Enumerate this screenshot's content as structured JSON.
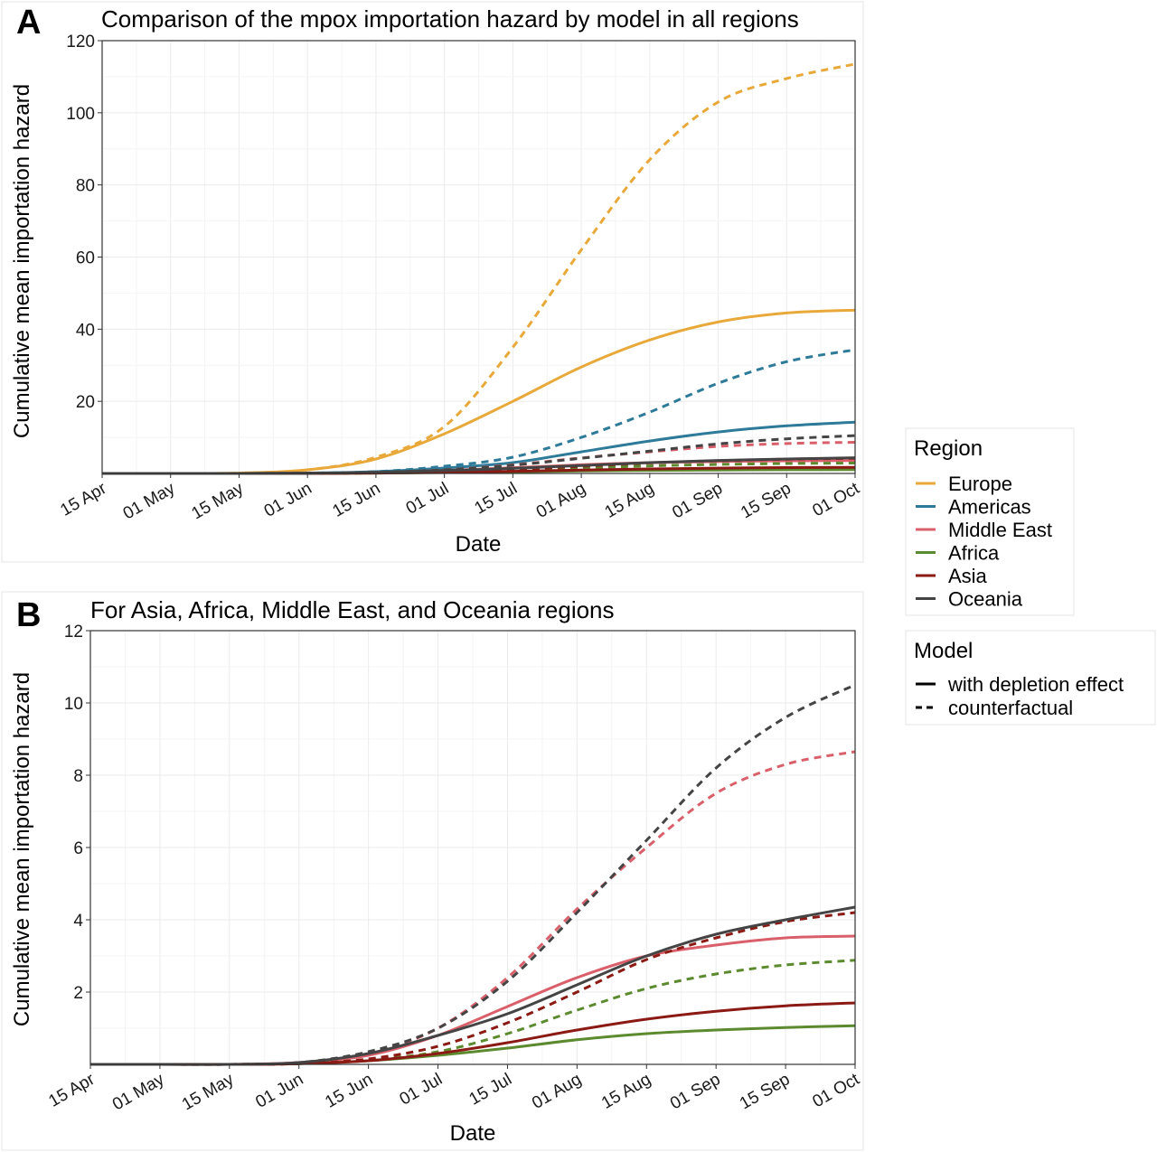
{
  "panels": [
    {
      "letter": "A",
      "title": "Comparison of the mpox importation hazard by model in all regions"
    },
    {
      "letter": "B",
      "title": "For Asia, Africa, Middle East, and Oceania regions"
    }
  ],
  "legend": {
    "region_title": "Region",
    "region_items": [
      {
        "label": "Europe",
        "color": "#E8A93A"
      },
      {
        "label": "Americas",
        "color": "#2E7A99"
      },
      {
        "label": "Middle East",
        "color": "#D9606A"
      },
      {
        "label": "Africa",
        "color": "#5C8A2E"
      },
      {
        "label": "Asia",
        "color": "#8B1A14"
      },
      {
        "label": "Oceania",
        "color": "#444444"
      }
    ],
    "model_title": "Model",
    "model_items": [
      {
        "label": "with depletion effect",
        "style": "solid"
      },
      {
        "label": "counterfactual",
        "style": "dashed"
      }
    ]
  },
  "chart_data": [
    {
      "type": "line",
      "title": "Comparison of the mpox importation hazard by model in all regions",
      "xlabel": "Date",
      "ylabel": "Cumulative mean importation hazard",
      "x_ticks": [
        "15 Apr",
        "01 May",
        "15 May",
        "01 Jun",
        "15 Jun",
        "01 Jul",
        "15 Jul",
        "01 Aug",
        "15 Aug",
        "01 Sep",
        "15 Sep",
        "01 Oct"
      ],
      "y_ticks": [
        20,
        40,
        60,
        80,
        100,
        120
      ],
      "ylim": [
        0,
        120
      ],
      "xlim": [
        "15 Apr",
        "01 Oct"
      ],
      "grid": true,
      "x": [
        "15 Apr",
        "01 May",
        "15 May",
        "01 Jun",
        "15 Jun",
        "01 Jul",
        "15 Jul",
        "01 Aug",
        "15 Aug",
        "01 Sep",
        "15 Sep",
        "01 Oct"
      ],
      "series": [
        {
          "region": "Europe",
          "model": "with depletion effect",
          "values": [
            0,
            0,
            0.1,
            1,
            4,
            11,
            20,
            29.5,
            37,
            42,
            44.5,
            45.3
          ]
        },
        {
          "region": "Europe",
          "model": "counterfactual",
          "values": [
            0,
            0,
            0.1,
            1,
            4.5,
            13,
            35,
            62,
            87,
            103,
            109.5,
            113.5
          ]
        },
        {
          "region": "Americas",
          "model": "with depletion effect",
          "values": [
            0,
            0,
            0,
            0.1,
            0.5,
            1.5,
            3,
            6,
            9,
            11.5,
            13.2,
            14.2
          ]
        },
        {
          "region": "Americas",
          "model": "counterfactual",
          "values": [
            0,
            0,
            0,
            0.1,
            0.5,
            2,
            4.5,
            10,
            17,
            25,
            31,
            34.3
          ]
        },
        {
          "region": "Middle East",
          "model": "with depletion effect",
          "values": [
            0,
            0,
            0,
            0.05,
            0.25,
            0.8,
            1.6,
            2.4,
            3.0,
            3.3,
            3.5,
            3.55
          ]
        },
        {
          "region": "Middle East",
          "model": "counterfactual",
          "values": [
            0,
            0,
            0,
            0.05,
            0.3,
            1.0,
            2.4,
            4.3,
            6.0,
            7.5,
            8.3,
            8.65
          ]
        },
        {
          "region": "Africa",
          "model": "with depletion effect",
          "values": [
            0,
            0,
            0,
            0.02,
            0.1,
            0.25,
            0.45,
            0.68,
            0.85,
            0.95,
            1.02,
            1.07
          ]
        },
        {
          "region": "Africa",
          "model": "counterfactual",
          "values": [
            0,
            0,
            0,
            0.02,
            0.12,
            0.35,
            0.85,
            1.5,
            2.1,
            2.5,
            2.75,
            2.88
          ]
        },
        {
          "region": "Asia",
          "model": "with depletion effect",
          "values": [
            0,
            0,
            0,
            0.02,
            0.1,
            0.3,
            0.6,
            0.95,
            1.25,
            1.47,
            1.62,
            1.7
          ]
        },
        {
          "region": "Asia",
          "model": "counterfactual",
          "values": [
            0,
            0,
            0,
            0.02,
            0.15,
            0.5,
            1.15,
            2.0,
            2.9,
            3.5,
            3.95,
            4.2
          ]
        },
        {
          "region": "Oceania",
          "model": "with depletion effect",
          "values": [
            0,
            0,
            0,
            0.05,
            0.3,
            0.8,
            1.4,
            2.2,
            3.0,
            3.6,
            4.0,
            4.35
          ]
        },
        {
          "region": "Oceania",
          "model": "counterfactual",
          "values": [
            0,
            0,
            0,
            0.05,
            0.35,
            1.0,
            2.3,
            4.2,
            6.2,
            8.2,
            9.6,
            10.5
          ]
        }
      ]
    },
    {
      "type": "line",
      "title": "For Asia, Africa, Middle East, and Oceania regions",
      "xlabel": "Date",
      "ylabel": "Cumulative mean importation hazard",
      "x_ticks": [
        "15 Apr",
        "01 May",
        "15 May",
        "01 Jun",
        "15 Jun",
        "01 Jul",
        "15 Jul",
        "01 Aug",
        "15 Aug",
        "01 Sep",
        "15 Sep",
        "01 Oct"
      ],
      "y_ticks": [
        2,
        4,
        6,
        8,
        10,
        12
      ],
      "ylim": [
        0,
        12
      ],
      "xlim": [
        "15 Apr",
        "01 Oct"
      ],
      "grid": true,
      "x": [
        "15 Apr",
        "01 May",
        "15 May",
        "01 Jun",
        "15 Jun",
        "01 Jul",
        "15 Jul",
        "01 Aug",
        "15 Aug",
        "01 Sep",
        "15 Sep",
        "01 Oct"
      ],
      "series": [
        {
          "region": "Middle East",
          "model": "with depletion effect",
          "values": [
            0,
            0,
            0,
            0.05,
            0.25,
            0.8,
            1.6,
            2.4,
            3.0,
            3.3,
            3.5,
            3.55
          ]
        },
        {
          "region": "Middle East",
          "model": "counterfactual",
          "values": [
            0,
            0,
            0,
            0.05,
            0.3,
            1.0,
            2.4,
            4.3,
            6.0,
            7.5,
            8.3,
            8.65
          ]
        },
        {
          "region": "Africa",
          "model": "with depletion effect",
          "values": [
            0,
            0,
            0,
            0.02,
            0.1,
            0.25,
            0.45,
            0.68,
            0.85,
            0.95,
            1.02,
            1.07
          ]
        },
        {
          "region": "Africa",
          "model": "counterfactual",
          "values": [
            0,
            0,
            0,
            0.02,
            0.12,
            0.35,
            0.85,
            1.5,
            2.1,
            2.5,
            2.75,
            2.88
          ]
        },
        {
          "region": "Asia",
          "model": "with depletion effect",
          "values": [
            0,
            0,
            0,
            0.02,
            0.1,
            0.3,
            0.6,
            0.95,
            1.25,
            1.47,
            1.62,
            1.7
          ]
        },
        {
          "region": "Asia",
          "model": "counterfactual",
          "values": [
            0,
            0,
            0,
            0.02,
            0.15,
            0.5,
            1.15,
            2.0,
            2.9,
            3.5,
            3.95,
            4.2
          ]
        },
        {
          "region": "Oceania",
          "model": "with depletion effect",
          "values": [
            0,
            0,
            0,
            0.05,
            0.3,
            0.8,
            1.4,
            2.2,
            3.0,
            3.6,
            4.0,
            4.35
          ]
        },
        {
          "region": "Oceania",
          "model": "counterfactual",
          "values": [
            0,
            0,
            0,
            0.05,
            0.35,
            1.0,
            2.3,
            4.2,
            6.2,
            8.2,
            9.6,
            10.5
          ]
        }
      ]
    }
  ]
}
